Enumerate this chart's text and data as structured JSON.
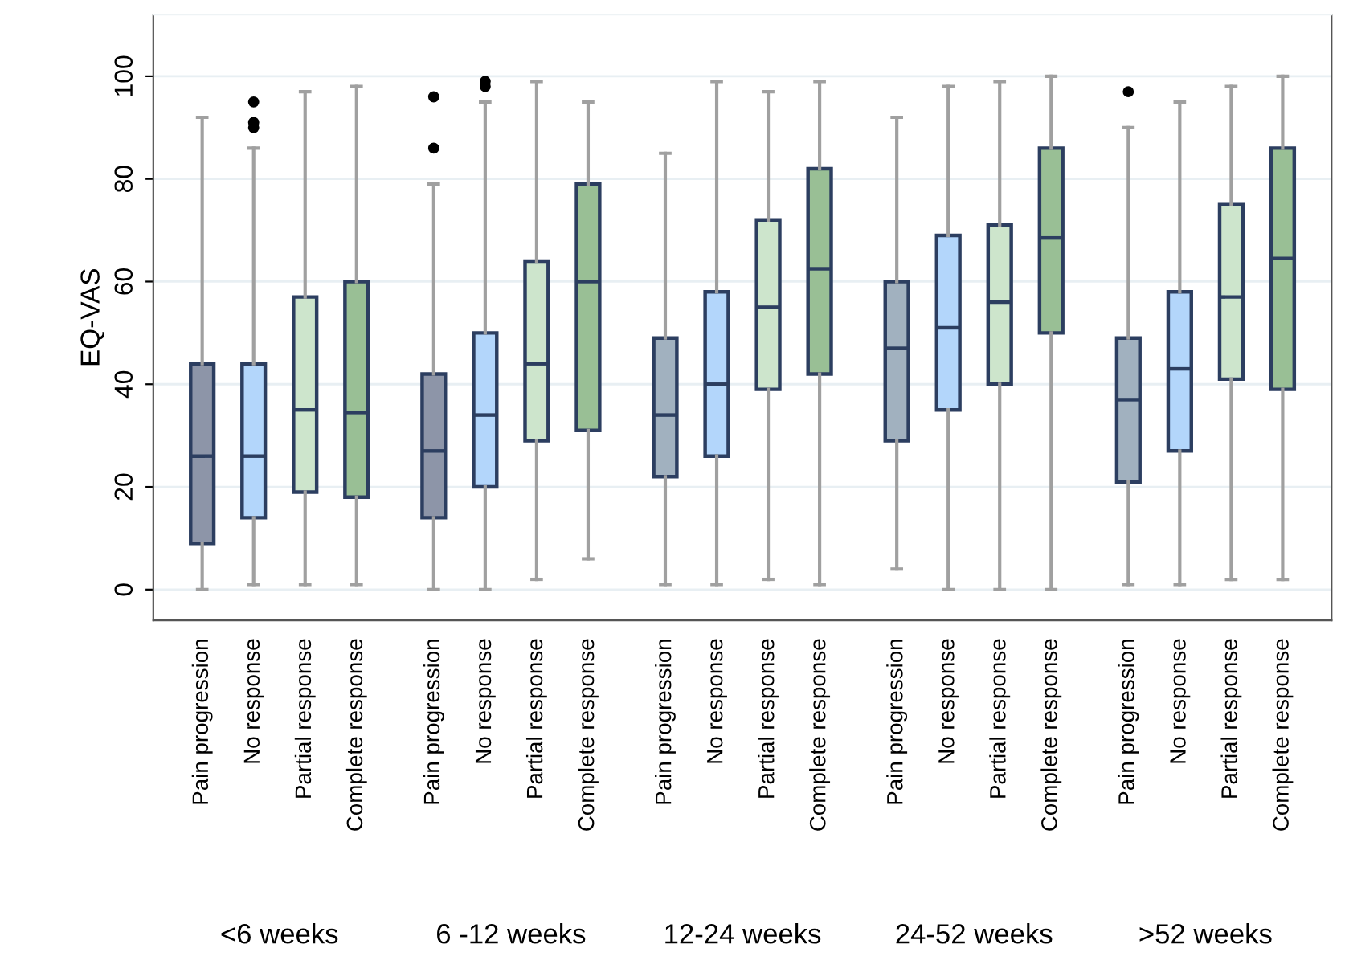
{
  "chart_data": {
    "type": "box",
    "ylabel": "EQ-VAS",
    "categories": [
      "Pain progression",
      "No response",
      "Partial response",
      "Complete response",
      "Pain progression",
      "No response",
      "Partial response",
      "Complete response",
      "Pain progression",
      "No response",
      "Partial response",
      "Complete response",
      "Pain progression",
      "No response",
      "Partial response",
      "Complete response",
      "Pain progression",
      "No response",
      "Partial response",
      "Complete response"
    ],
    "colors": [
      "#8d95a8",
      "#b3d6fb",
      "#cde5cc",
      "#99bf95",
      "#8d95a8",
      "#b3d6fb",
      "#cde5cc",
      "#99bf95",
      "#a1b1bf",
      "#b3d6fb",
      "#cde5cc",
      "#99bf95",
      "#a1b1bf",
      "#b3d6fb",
      "#cde5cc",
      "#99bf95",
      "#a1b1bf",
      "#b3d6fb",
      "#cde5cc",
      "#99bf95"
    ],
    "boxes": [
      {
        "low": 0,
        "q1": 9,
        "median": 26,
        "q3": 44,
        "high": 92
      },
      {
        "low": 1,
        "q1": 14,
        "median": 26,
        "q3": 44,
        "high": 86,
        "outliers": [
          90,
          91,
          95
        ]
      },
      {
        "low": 1,
        "q1": 19,
        "median": 35,
        "q3": 57,
        "high": 97
      },
      {
        "low": 1,
        "q1": 18,
        "median": 34.5,
        "q3": 60,
        "high": 98
      },
      {
        "low": 0,
        "q1": 14,
        "median": 27,
        "q3": 42,
        "high": 79,
        "outliers": [
          86,
          96
        ]
      },
      {
        "low": 0,
        "q1": 20,
        "median": 34,
        "q3": 50,
        "high": 95,
        "outliers": [
          98,
          99
        ]
      },
      {
        "low": 2,
        "q1": 29,
        "median": 44,
        "q3": 64,
        "high": 99
      },
      {
        "low": 6,
        "q1": 31,
        "median": 60,
        "q3": 79,
        "high": 95
      },
      {
        "low": 1,
        "q1": 22,
        "median": 34,
        "q3": 49,
        "high": 85
      },
      {
        "low": 1,
        "q1": 26,
        "median": 40,
        "q3": 58,
        "high": 99
      },
      {
        "low": 2,
        "q1": 39,
        "median": 55,
        "q3": 72,
        "high": 97
      },
      {
        "low": 1,
        "q1": 42,
        "median": 62.5,
        "q3": 82,
        "high": 99
      },
      {
        "low": 4,
        "q1": 29,
        "median": 47,
        "q3": 60,
        "high": 92
      },
      {
        "low": 0,
        "q1": 35,
        "median": 51,
        "q3": 69,
        "high": 98
      },
      {
        "low": 0,
        "q1": 40,
        "median": 56,
        "q3": 71,
        "high": 99
      },
      {
        "low": 0,
        "q1": 50,
        "median": 68.5,
        "q3": 86,
        "high": 100
      },
      {
        "low": 1,
        "q1": 21,
        "median": 37,
        "q3": 49,
        "high": 90,
        "outliers": [
          97
        ]
      },
      {
        "low": 1,
        "q1": 27,
        "median": 43,
        "q3": 58,
        "high": 95
      },
      {
        "low": 2,
        "q1": 41,
        "median": 57,
        "q3": 75,
        "high": 98
      },
      {
        "low": 2,
        "q1": 39,
        "median": 64.5,
        "q3": 86,
        "high": 100
      }
    ],
    "annotations": [
      "<6 weeks",
      "6 -12 weeks",
      "12-24 weeks",
      "24-52 weeks",
      ">52 weeks"
    ],
    "ylim": [
      -6,
      112
    ],
    "yticks": [
      0,
      20,
      40,
      60,
      80,
      100
    ],
    "grid": "y"
  }
}
